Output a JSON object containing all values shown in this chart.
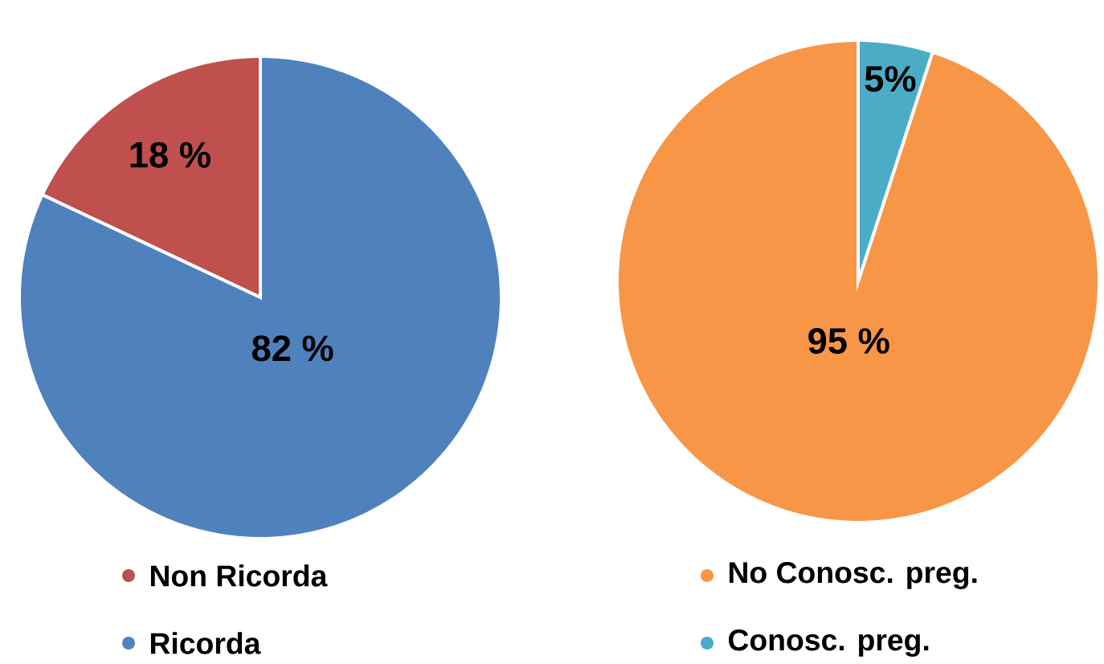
{
  "chart_data": [
    {
      "type": "pie",
      "categories": [
        "Non Ricorda",
        "Ricorda"
      ],
      "values": [
        18,
        82
      ],
      "colors": [
        "#c0504d",
        "#4f81bd"
      ],
      "value_labels": [
        "18 %",
        "82 %"
      ],
      "legend": "bottom"
    },
    {
      "type": "pie",
      "categories": [
        "No Conosc. preg.",
        "Conosc. preg."
      ],
      "values": [
        95,
        5
      ],
      "colors": [
        "#f79646",
        "#4bacc6"
      ],
      "value_labels": [
        "95 %",
        "5%"
      ],
      "legend": "bottom"
    }
  ]
}
